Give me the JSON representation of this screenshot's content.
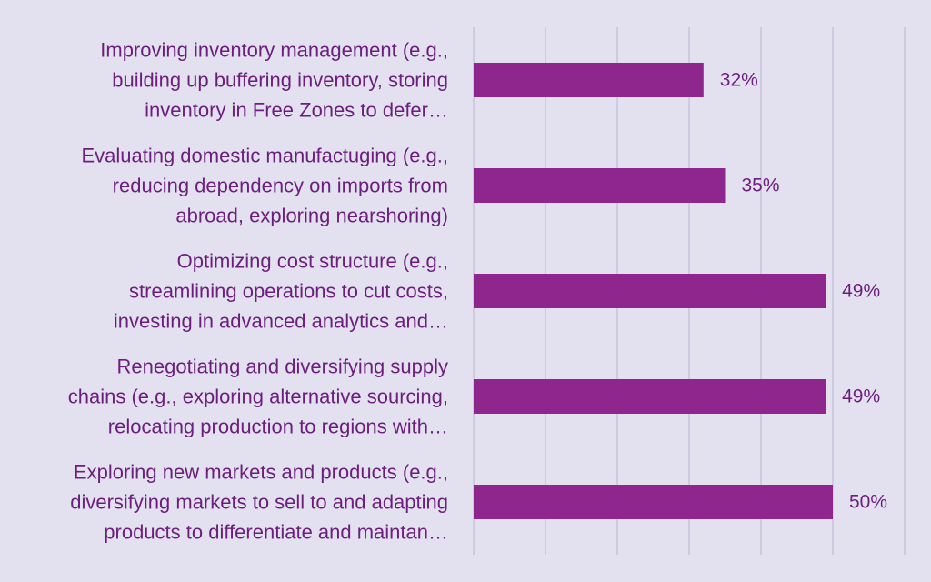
{
  "chart_data": {
    "type": "bar",
    "orientation": "horizontal",
    "categories": [
      [
        "Improving inventory management (e.g.,",
        "building up buffering inventory, storing",
        "inventory in Free Zones to defer…"
      ],
      [
        "Evaluating domestic manufactuging (e.g.,",
        "reducing dependency on imports from",
        "abroad, exploring nearshoring)"
      ],
      [
        "Optimizing cost structure (e.g.,",
        "streamlining operations to cut costs,",
        "investing in advanced analytics and…"
      ],
      [
        "Renegotiating and diversifying supply",
        "chains (e.g., exploring alternative sourcing,",
        "relocating production to regions with…"
      ],
      [
        "Exploring new markets and products (e.g.,",
        "diversifying markets to sell to and adapting",
        "products to differentiate and maintan…"
      ]
    ],
    "values": [
      32,
      35,
      49,
      49,
      50
    ],
    "value_labels": [
      "32%",
      "35%",
      "49%",
      "49%",
      "50%"
    ],
    "xlim": [
      0,
      60
    ],
    "grid": true,
    "colors": {
      "background": "#e3e0f0",
      "bar": "#8e268e",
      "text": "#6b1f7c",
      "grid": "#c7c2d9"
    }
  }
}
